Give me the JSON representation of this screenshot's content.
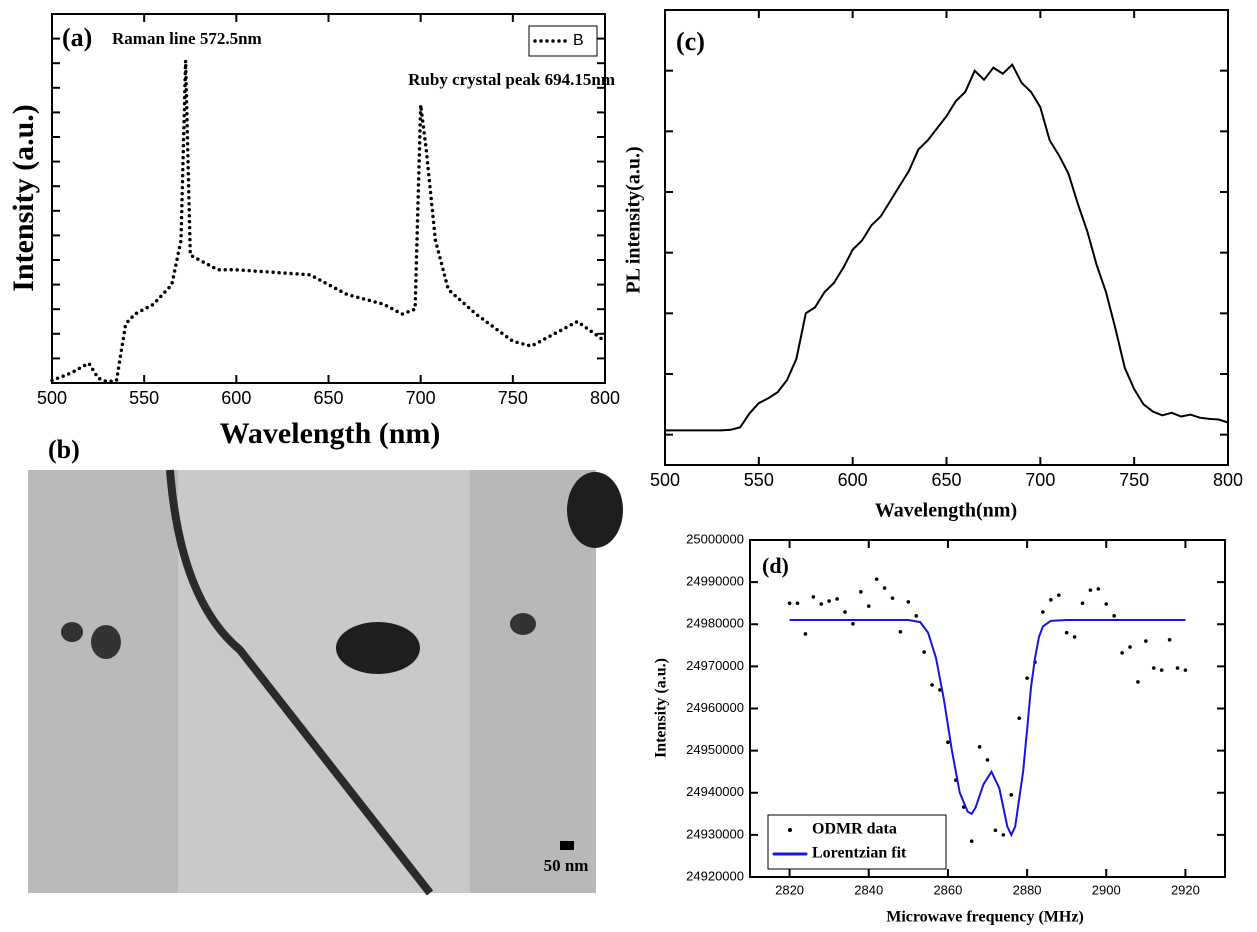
{
  "chart_data": [
    {
      "type": "line",
      "label": "(a)",
      "xlabel": "Wavelength (nm)",
      "ylabel": "Intensity (a.u.)",
      "annotations": [
        "Raman line 572.5nm",
        "Ruby crystal peak 694.15nm"
      ],
      "xlim": [
        500,
        800
      ],
      "xticks": [
        500,
        550,
        600,
        650,
        700,
        750,
        800
      ],
      "ylim": [
        0,
        15
      ],
      "yticks": [
        1,
        2,
        3,
        4,
        5,
        6,
        7,
        8,
        9,
        10,
        11,
        12,
        13,
        14
      ],
      "ytick_labels": false,
      "legend": "upper right",
      "x": [
        500,
        510,
        520,
        525,
        530,
        535,
        540,
        545,
        555,
        565,
        570,
        572.5,
        575,
        580,
        590,
        600,
        620,
        640,
        650,
        660,
        680,
        690,
        697,
        700,
        703,
        708,
        715,
        730,
        750,
        760,
        770,
        785,
        800
      ],
      "series": [
        {
          "name": "B",
          "color": "#000000",
          "line_style": "dotted",
          "values": [
            0.1,
            0.4,
            0.8,
            0.2,
            0.05,
            0.1,
            2.4,
            2.8,
            3.2,
            4.0,
            5.8,
            13.1,
            5.2,
            5.0,
            4.6,
            4.6,
            4.5,
            4.4,
            4.0,
            3.6,
            3.2,
            2.8,
            3.0,
            11.3,
            9.5,
            5.8,
            3.8,
            2.8,
            1.7,
            1.5,
            1.9,
            2.5,
            1.7
          ]
        }
      ]
    },
    {
      "type": "line",
      "label": "(c)",
      "xlabel": "Wavelength(nm)",
      "ylabel": "PL intensity(a.u.)",
      "xlim": [
        500,
        800
      ],
      "xticks": [
        500,
        550,
        600,
        650,
        700,
        750,
        800
      ],
      "ylim": [
        0,
        7.5
      ],
      "yticks": [
        0.5,
        1.5,
        2.5,
        3.5,
        4.5,
        5.5,
        6.5
      ],
      "ytick_labels": false,
      "x": [
        500,
        505,
        510,
        515,
        520,
        525,
        530,
        535,
        540,
        545,
        550,
        555,
        560,
        565,
        570,
        575,
        580,
        585,
        590,
        595,
        600,
        605,
        610,
        615,
        620,
        625,
        630,
        635,
        640,
        645,
        650,
        655,
        660,
        665,
        670,
        675,
        680,
        685,
        690,
        695,
        700,
        705,
        710,
        715,
        720,
        725,
        730,
        735,
        740,
        745,
        750,
        755,
        760,
        765,
        770,
        775,
        780,
        785,
        790,
        795,
        800
      ],
      "series": [
        {
          "color": "#000000",
          "values": [
            0.57,
            0.57,
            0.57,
            0.57,
            0.57,
            0.57,
            0.57,
            0.58,
            0.62,
            0.85,
            1.02,
            1.1,
            1.2,
            1.4,
            1.75,
            2.5,
            2.6,
            2.85,
            3.0,
            3.25,
            3.55,
            3.7,
            3.95,
            4.1,
            4.35,
            4.6,
            4.85,
            5.2,
            5.35,
            5.55,
            5.75,
            6.0,
            6.15,
            6.5,
            6.35,
            6.55,
            6.45,
            6.6,
            6.3,
            6.15,
            5.9,
            5.35,
            5.1,
            4.8,
            4.3,
            3.85,
            3.3,
            2.85,
            2.25,
            1.6,
            1.25,
            1.0,
            0.88,
            0.82,
            0.86,
            0.8,
            0.83,
            0.78,
            0.76,
            0.75,
            0.7
          ]
        }
      ]
    },
    {
      "type": "scatter",
      "label": "(d)",
      "xlabel": "Microwave frequency (MHz)",
      "ylabel": "Intensity (a.u.)",
      "xlim": [
        2810,
        2930
      ],
      "xticks": [
        2820,
        2840,
        2860,
        2880,
        2900,
        2920
      ],
      "ylim": [
        24920000,
        25000000
      ],
      "yticks": [
        24920000,
        24930000,
        24940000,
        24950000,
        24960000,
        24970000,
        24980000,
        24990000,
        25000000
      ],
      "legend": "lower left",
      "series": [
        {
          "name": "ODMR data",
          "type": "scatter",
          "color": "#000000",
          "x": [
            2820,
            2822,
            2824,
            2826,
            2828,
            2830,
            2832,
            2834,
            2836,
            2838,
            2840,
            2842,
            2844,
            2846,
            2848,
            2850,
            2852,
            2854,
            2856,
            2858,
            2860,
            2862,
            2864,
            2866,
            2868,
            2870,
            2872,
            2874,
            2876,
            2878,
            2880,
            2882,
            2884,
            2886,
            2888,
            2890,
            2892,
            2894,
            2896,
            2898,
            2900,
            2902,
            2904,
            2906,
            2908,
            2910,
            2912,
            2914,
            2916,
            2918,
            2920
          ],
          "values": [
            24985000,
            24985000,
            24977700,
            24986500,
            24984800,
            24985500,
            24986000,
            24982900,
            24980100,
            24987700,
            24984300,
            24990700,
            24988600,
            24986200,
            24978200,
            24985300,
            24982000,
            24973400,
            24965600,
            24964400,
            24952000,
            24943000,
            24936600,
            24928500,
            24950900,
            24947800,
            24931100,
            24930000,
            24939500,
            24957700,
            24967200,
            24971000,
            24982900,
            24985800,
            24986900,
            24978000,
            24977000,
            24985000,
            24988100,
            24988400,
            24984800,
            24982000,
            24973200,
            24974600,
            24966300,
            24976000,
            24969600,
            24969100,
            24976300,
            24969600,
            24969100
          ]
        },
        {
          "name": "Lorentzian fit",
          "type": "line",
          "color": "#1414e6",
          "x": [
            2820,
            2850,
            2853,
            2855,
            2857,
            2859,
            2861,
            2863,
            2865,
            2866,
            2867,
            2869,
            2871,
            2873,
            2875,
            2876,
            2877,
            2879,
            2880,
            2881,
            2882,
            2883,
            2884,
            2886,
            2890,
            2920
          ],
          "values": [
            24981000,
            24981000,
            24980500,
            24978000,
            24972000,
            24962000,
            24950000,
            24940000,
            24935500,
            24935000,
            24936500,
            24942000,
            24945000,
            24941000,
            24932000,
            24930000,
            24932000,
            24945000,
            24955000,
            24965000,
            24972000,
            24977000,
            24979500,
            24980800,
            24981000,
            24981000
          ]
        }
      ]
    }
  ],
  "image_panel": {
    "label": "(b)",
    "scale_bar": "50 nm"
  }
}
